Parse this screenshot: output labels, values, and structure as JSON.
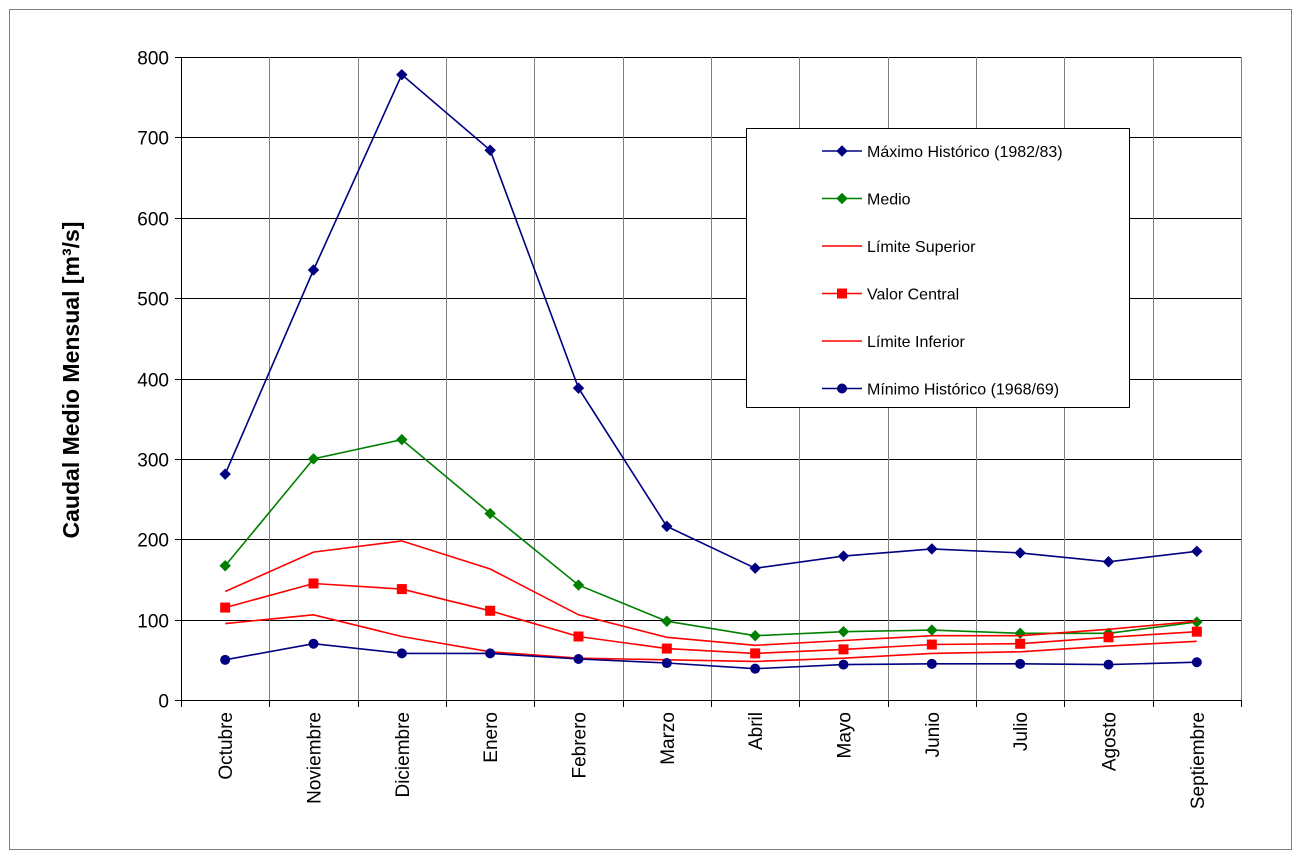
{
  "chart_data": {
    "type": "line",
    "title": "",
    "xlabel": "",
    "ylabel": "Caudal Medio Mensual [m³/s]",
    "ylim": [
      0,
      800
    ],
    "yticks": [
      0,
      100,
      200,
      300,
      400,
      500,
      600,
      700,
      800
    ],
    "grid": true,
    "legend_position": "top-right",
    "categories": [
      "Octubre",
      "Noviembre",
      "Diciembre",
      "Enero",
      "Febrero",
      "Marzo",
      "Abril",
      "Mayo",
      "Junio",
      "Julio",
      "Agosto",
      "Septiembre"
    ],
    "series": [
      {
        "name": "Máximo Histórico (1982/83)",
        "color": "#000080",
        "marker": "diamond",
        "values": [
          281,
          535,
          778,
          684,
          388,
          216,
          164,
          179,
          188,
          183,
          172,
          185
        ]
      },
      {
        "name": "Medio",
        "color": "#008000",
        "marker": "diamond",
        "values": [
          167,
          300,
          324,
          232,
          143,
          98,
          80,
          85,
          87,
          83,
          83,
          97
        ]
      },
      {
        "name": "Límite Superior",
        "color": "#ff0000",
        "marker": "none",
        "values": [
          135,
          184,
          198,
          163,
          106,
          78,
          68,
          74,
          80,
          80,
          88,
          98
        ]
      },
      {
        "name": "Valor Central",
        "color": "#ff0000",
        "marker": "square",
        "values": [
          115,
          145,
          138,
          111,
          79,
          64,
          58,
          63,
          69,
          70,
          78,
          85
        ]
      },
      {
        "name": "Límite Inferior",
        "color": "#ff0000",
        "marker": "none",
        "values": [
          95,
          106,
          79,
          60,
          52,
          50,
          48,
          52,
          58,
          60,
          67,
          73
        ]
      },
      {
        "name": "Mínimo Histórico (1968/69)",
        "color": "#000080",
        "marker": "circle",
        "values": [
          50,
          70,
          58,
          58,
          51,
          46,
          39,
          44,
          45,
          45,
          44,
          47
        ]
      }
    ]
  }
}
